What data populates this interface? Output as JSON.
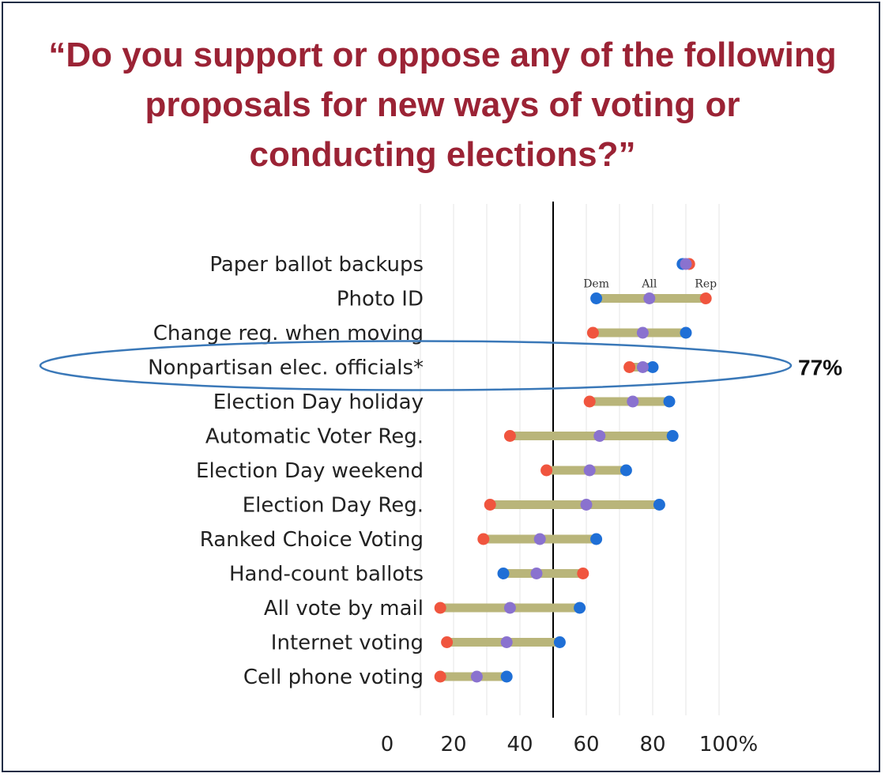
{
  "title": "“Do you support or oppose any of the following proposals for new ways of voting or conducting elections?”",
  "colors": {
    "title": "#9b2335",
    "dem": "#1f6fd6",
    "all": "#8a72cf",
    "rep": "#f0553e",
    "range": "#b9b57a",
    "highlight": "#3a78b8"
  },
  "chart_data": {
    "type": "dumbbell",
    "xlim": [
      0,
      100
    ],
    "xticks": [
      "0",
      "20",
      "40",
      "60",
      "80",
      "100%"
    ],
    "reference_line": 50,
    "legend_labels": {
      "dem": "Dem",
      "all": "All",
      "rep": "Rep"
    },
    "categories": [
      "Paper ballot backups",
      "Photo ID",
      "Change reg. when moving",
      "Nonpartisan elec. officials*",
      "Election Day holiday",
      "Automatic Voter Reg.",
      "Election Day weekend",
      "Election Day Reg.",
      "Ranked Choice Voting",
      "Hand-count ballots",
      "All vote by mail",
      "Internet voting",
      "Cell phone voting"
    ],
    "series": [
      {
        "name": "Dem",
        "values": [
          89,
          63,
          90,
          80,
          85,
          86,
          72,
          82,
          63,
          35,
          58,
          52,
          36
        ]
      },
      {
        "name": "All",
        "values": [
          90,
          79,
          77,
          77,
          74,
          64,
          61,
          60,
          46,
          45,
          37,
          36,
          27
        ]
      },
      {
        "name": "Rep",
        "values": [
          91,
          96,
          62,
          73,
          61,
          37,
          48,
          31,
          29,
          59,
          16,
          18,
          16
        ]
      }
    ],
    "highlight": {
      "category": "Nonpartisan elec. officials*",
      "callout": "77%"
    }
  }
}
